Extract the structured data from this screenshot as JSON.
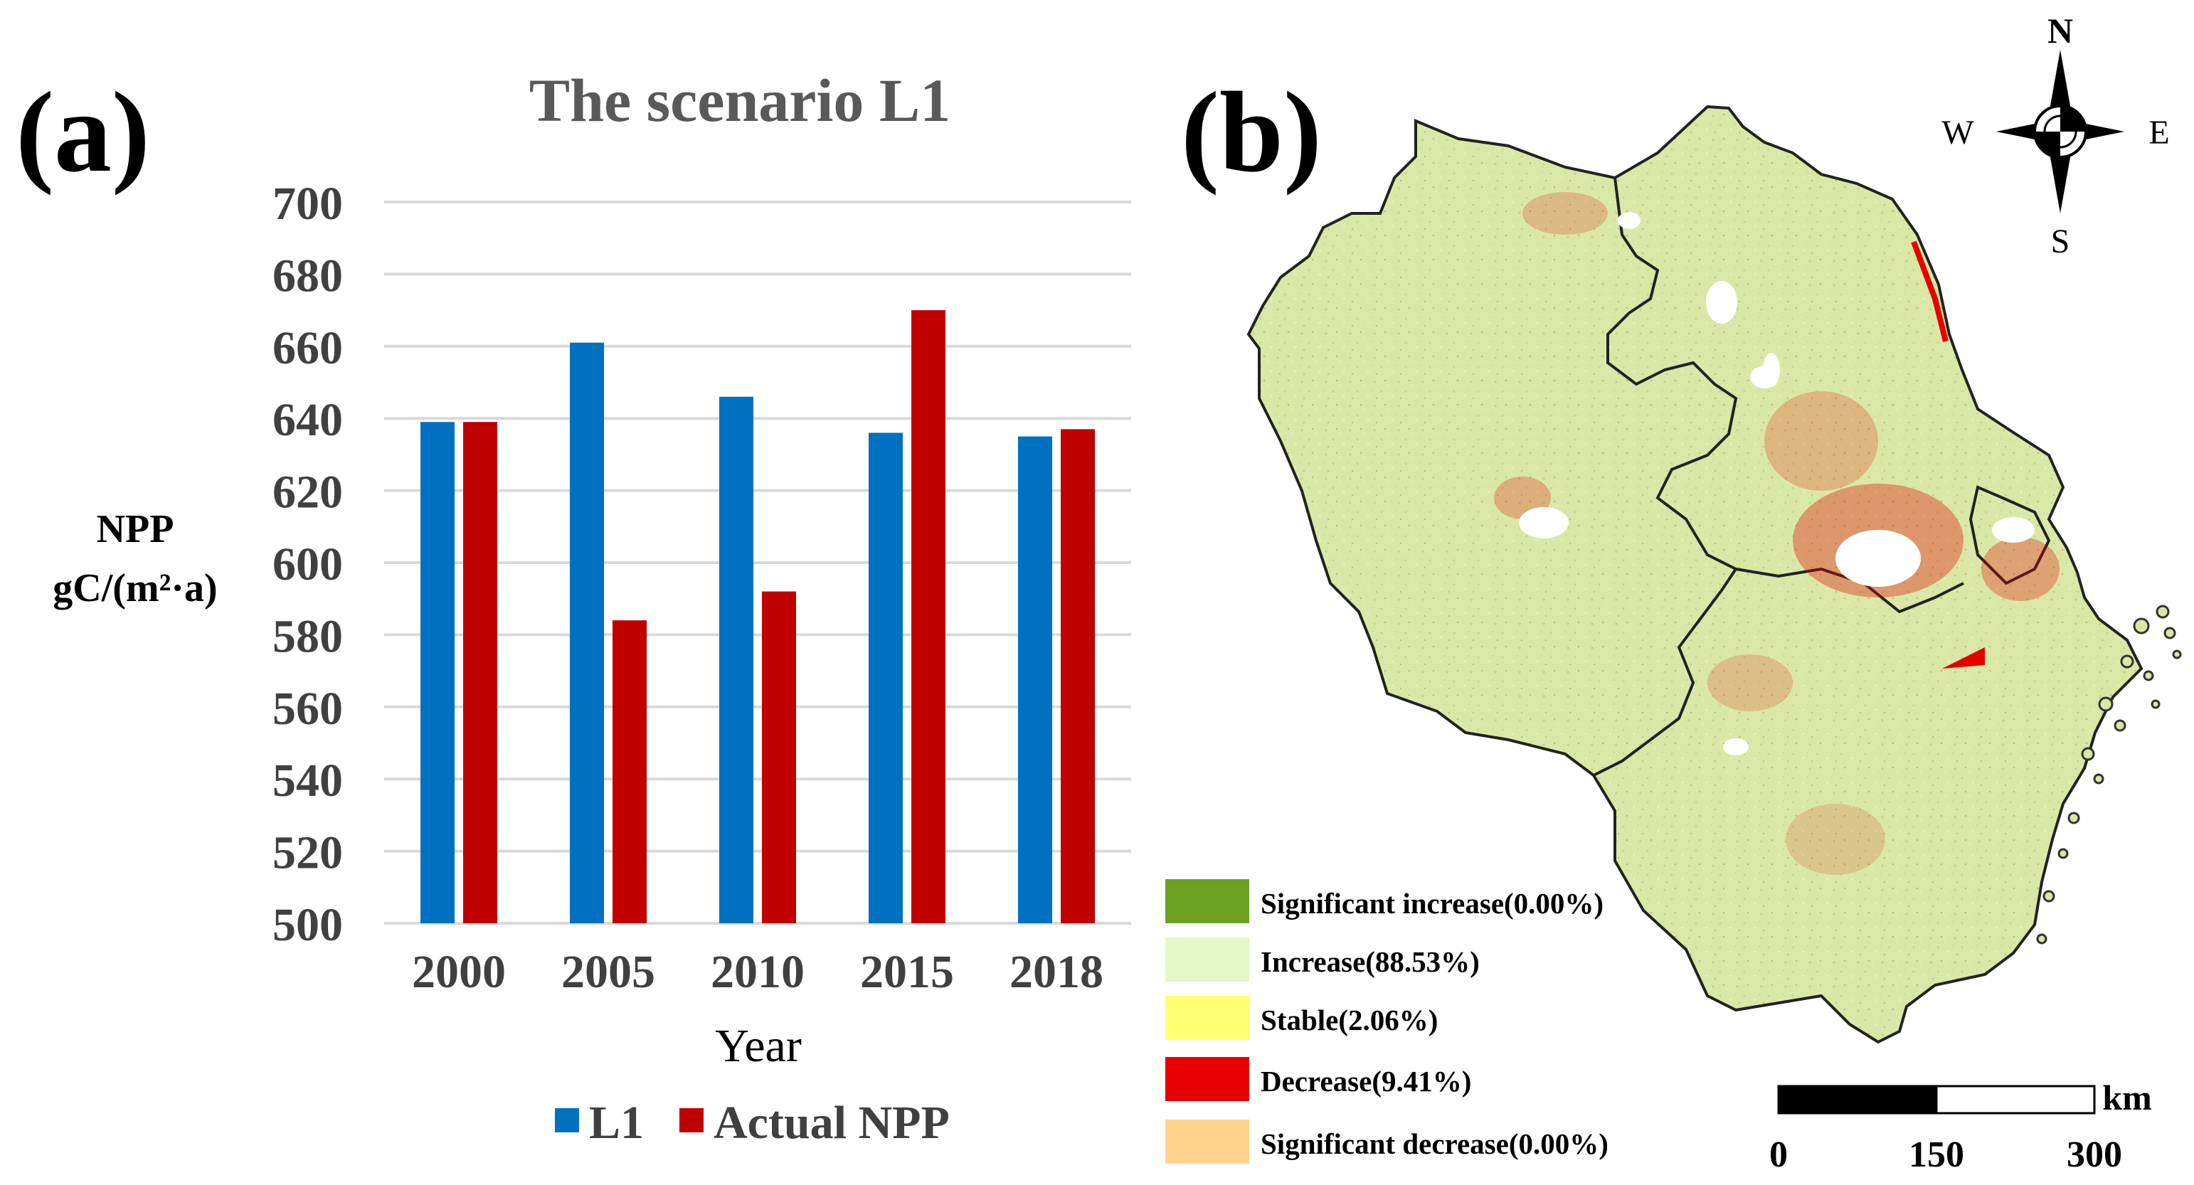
{
  "panel_a": {
    "label": "(a)",
    "chart_data": {
      "type": "bar",
      "title": "The scenario L1",
      "xlabel": "Year",
      "ylabel_line1": "NPP",
      "ylabel_line2": "gC/(m²·a)",
      "categories": [
        "2000",
        "2005",
        "2010",
        "2015",
        "2018"
      ],
      "ylim": [
        500,
        700
      ],
      "yticks": [
        500,
        520,
        540,
        560,
        580,
        600,
        620,
        640,
        660,
        680,
        700
      ],
      "grid": true,
      "legend_position": "bottom",
      "series": [
        {
          "name": "L1",
          "color": "#0070C0",
          "values": [
            639,
            661,
            646,
            636,
            635
          ]
        },
        {
          "name": "Actual NPP",
          "color": "#C00000",
          "values": [
            639,
            584,
            592,
            670,
            637
          ]
        }
      ]
    }
  },
  "panel_b": {
    "label": "(b)",
    "compass": {
      "n": "N",
      "s": "S",
      "e": "E",
      "w": "W"
    },
    "legend": [
      {
        "label": "Significant increase(0.00%)",
        "color": "#6AA121"
      },
      {
        "label": "Increase(88.53%)",
        "color": "#E6F7C8"
      },
      {
        "label": "Stable(2.06%)",
        "color": "#FFFF73"
      },
      {
        "label": "Decrease(9.41%)",
        "color": "#E60000"
      },
      {
        "label": "Significant decrease(0.00%)",
        "color": "#FFD38C"
      }
    ],
    "scale_bar": {
      "unit": "km",
      "ticks": [
        "0",
        "150",
        "300"
      ]
    }
  }
}
